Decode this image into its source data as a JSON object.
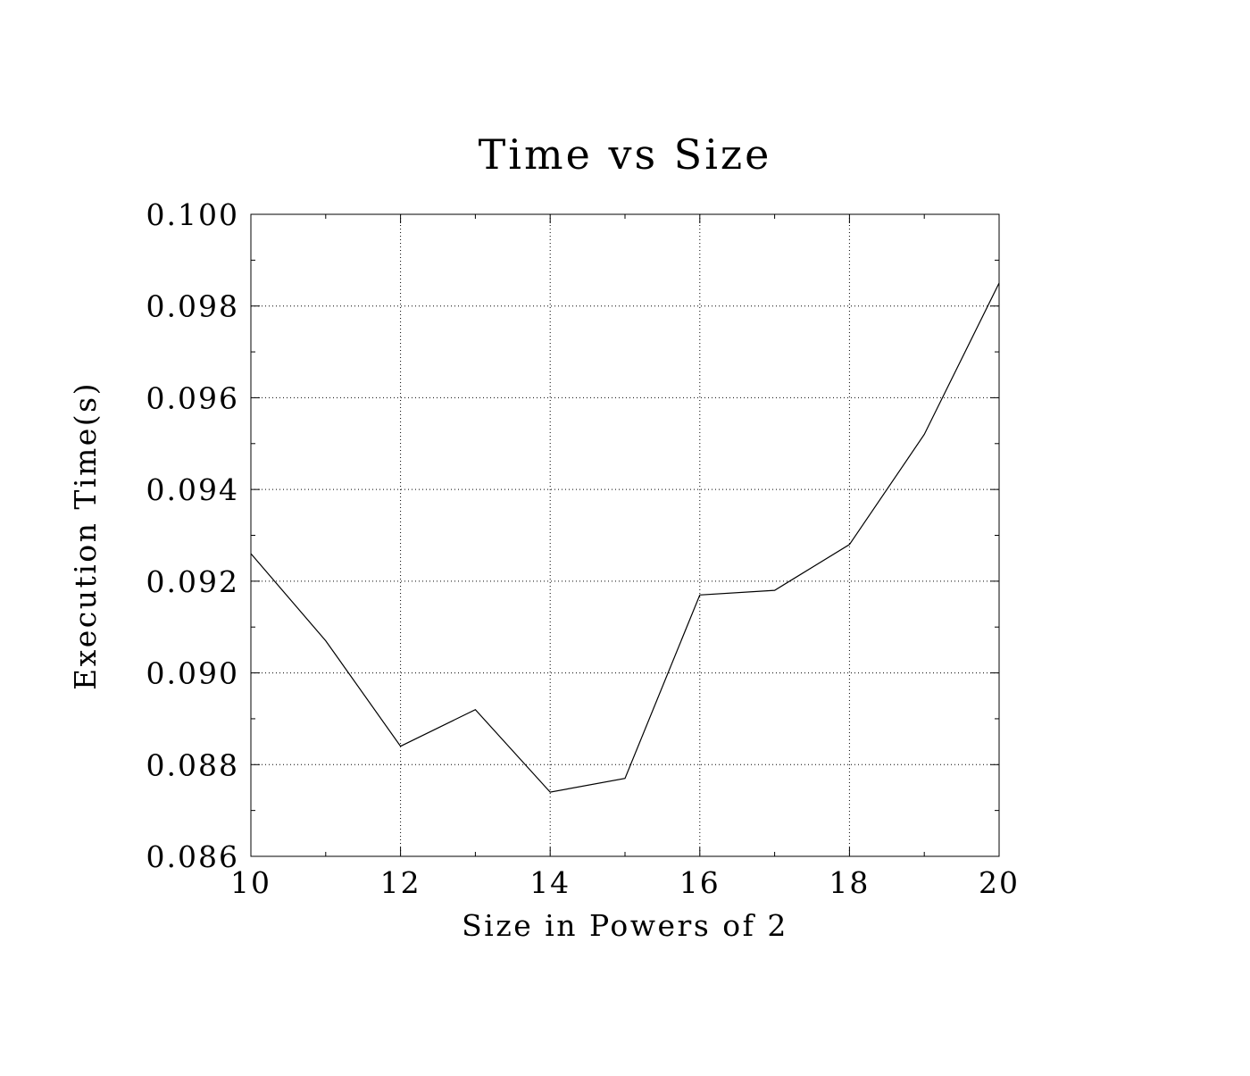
{
  "chart_data": {
    "type": "line",
    "title": "Time vs Size",
    "xlabel": "Size in Powers of 2",
    "ylabel": "Execution Time(s)",
    "xlim": [
      10,
      20
    ],
    "ylim": [
      0.086,
      0.1
    ],
    "x_ticks": [
      "10",
      "12",
      "14",
      "16",
      "18",
      "20"
    ],
    "y_ticks": [
      "0.100",
      "0.098",
      "0.096",
      "0.094",
      "0.092",
      "0.090",
      "0.088",
      "0.086"
    ],
    "grid": true,
    "grid_style": "dotted",
    "series": [
      {
        "x": [
          10,
          11,
          12,
          13,
          14,
          15,
          16,
          17,
          18,
          19,
          20
        ],
        "y": [
          0.0926,
          0.0907,
          0.0884,
          0.0892,
          0.0874,
          0.0877,
          0.0917,
          0.0918,
          0.0928,
          0.0952,
          0.0985
        ],
        "color": "#000000"
      }
    ]
  }
}
